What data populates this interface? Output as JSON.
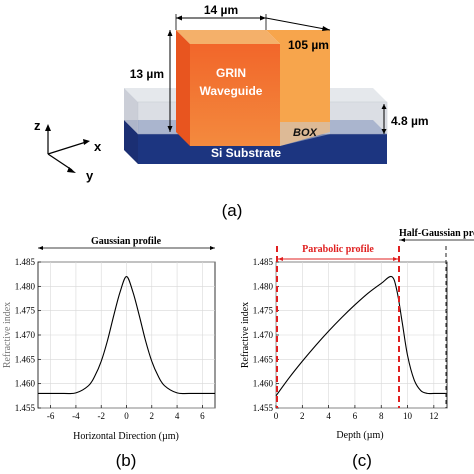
{
  "panel_a": {
    "dim_width": "14 µm",
    "dim_length": "105 µm",
    "dim_height": "13 µm",
    "dim_box": "4.8 µm",
    "label_grin_1": "GRIN",
    "label_grin_2": "Waveguide",
    "label_box": "BOX",
    "label_substrate": "Si Substrate",
    "axis_z": "z",
    "axis_x": "x",
    "axis_y": "y",
    "caption": "(a)"
  },
  "panel_b": {
    "caption": "(b)",
    "header": "Gaussian profile"
  },
  "panel_c": {
    "caption": "(c)",
    "header_left": "Parabolic profile",
    "header_right": "Half-Gaussian prof"
  },
  "chart_data": [
    {
      "type": "line",
      "xlabel": "Horizontal Direction (µm)",
      "ylabel": "Refractive index",
      "xlim": [
        -7,
        7
      ],
      "ylim": [
        1.455,
        1.485
      ],
      "xticks": [
        -6,
        -4,
        -2,
        0,
        2,
        4,
        6
      ],
      "yticks": [
        1.455,
        1.46,
        1.465,
        1.47,
        1.475,
        1.48,
        1.485
      ],
      "grid": true,
      "series": [
        {
          "x": [
            -7,
            -5,
            -4,
            -3,
            -2.5,
            -2,
            -1.5,
            -1,
            -0.5,
            0,
            0.5,
            1,
            1.5,
            2,
            2.5,
            3,
            4,
            5,
            7
          ],
          "values": [
            1.458,
            1.458,
            1.4581,
            1.4596,
            1.4616,
            1.4646,
            1.4689,
            1.4741,
            1.4789,
            1.482,
            1.4789,
            1.4741,
            1.4689,
            1.4646,
            1.4616,
            1.4596,
            1.4581,
            1.458,
            1.458
          ]
        }
      ]
    },
    {
      "type": "line",
      "xlabel": "Depth (µm)",
      "ylabel": "Refractive index",
      "xlim": [
        0,
        13
      ],
      "ylim": [
        1.455,
        1.485
      ],
      "xticks": [
        0,
        2,
        4,
        6,
        8,
        10,
        12
      ],
      "yticks": [
        1.455,
        1.46,
        1.465,
        1.47,
        1.475,
        1.48,
        1.485
      ],
      "grid": true,
      "series": [
        {
          "x": [
            0,
            1,
            2,
            3,
            4,
            5,
            6,
            7,
            8,
            8.8,
            9.2,
            9.6,
            10,
            10.5,
            11,
            11.5,
            12,
            13
          ],
          "values": [
            1.4575,
            1.4612,
            1.4646,
            1.4678,
            1.4708,
            1.4736,
            1.4762,
            1.4786,
            1.4806,
            1.482,
            1.479,
            1.4725,
            1.4658,
            1.4608,
            1.4586,
            1.458,
            1.458,
            1.458
          ]
        }
      ]
    }
  ]
}
